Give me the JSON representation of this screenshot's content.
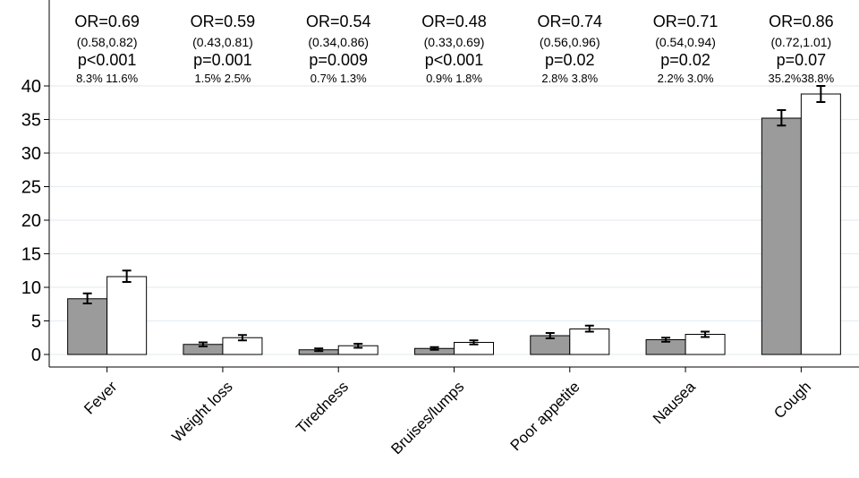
{
  "chart_data": {
    "type": "bar",
    "categories": [
      "Fever",
      "Weight loss",
      "Tiredness",
      "Bruises/lumps",
      "Poor appetite",
      "Nausea",
      "Cough"
    ],
    "series": [
      {
        "values": [
          8.3,
          1.5,
          0.7,
          0.9,
          2.8,
          2.2,
          35.2
        ],
        "ci_low": [
          7.6,
          1.2,
          0.5,
          0.7,
          2.4,
          1.9,
          34.1
        ],
        "ci_high": [
          9.1,
          1.8,
          0.9,
          1.1,
          3.2,
          2.5,
          36.4
        ],
        "color": "#9b9b9b"
      },
      {
        "values": [
          11.6,
          2.5,
          1.3,
          1.8,
          3.8,
          3.0,
          38.8
        ],
        "ci_low": [
          10.8,
          2.1,
          1.0,
          1.5,
          3.4,
          2.6,
          37.6
        ],
        "ci_high": [
          12.5,
          2.9,
          1.6,
          2.1,
          4.3,
          3.4,
          40.0
        ],
        "color": "#ffffff"
      }
    ],
    "annotations": [
      {
        "or": "OR=0.69",
        "ci": "(0.58,0.82)",
        "p": "p<0.001",
        "pct": "8.3% 11.6%"
      },
      {
        "or": "OR=0.59",
        "ci": "(0.43,0.81)",
        "p": "p=0.001",
        "pct": "1.5%  2.5%"
      },
      {
        "or": "OR=0.54",
        "ci": "(0.34,0.86)",
        "p": "p=0.009",
        "pct": "0.7%  1.3%"
      },
      {
        "or": "OR=0.48",
        "ci": "(0.33,0.69)",
        "p": "p<0.001",
        "pct": "0.9%  1.8%"
      },
      {
        "or": "OR=0.74",
        "ci": "(0.56,0.96)",
        "p": "p=0.02",
        "pct": "2.8%  3.8%"
      },
      {
        "or": "OR=0.71",
        "ci": "(0.54,0.94)",
        "p": "p=0.02",
        "pct": "2.2%  3.0%"
      },
      {
        "or": "OR=0.86",
        "ci": "(0.72,1.01)",
        "p": "p=0.07",
        "pct": "35.2%38.8%"
      }
    ],
    "yticks": [
      0,
      5,
      10,
      15,
      20,
      25,
      30,
      35,
      40
    ],
    "ylim": [
      -2,
      52
    ],
    "grid": true,
    "title": "",
    "xlabel": "",
    "ylabel": ""
  }
}
